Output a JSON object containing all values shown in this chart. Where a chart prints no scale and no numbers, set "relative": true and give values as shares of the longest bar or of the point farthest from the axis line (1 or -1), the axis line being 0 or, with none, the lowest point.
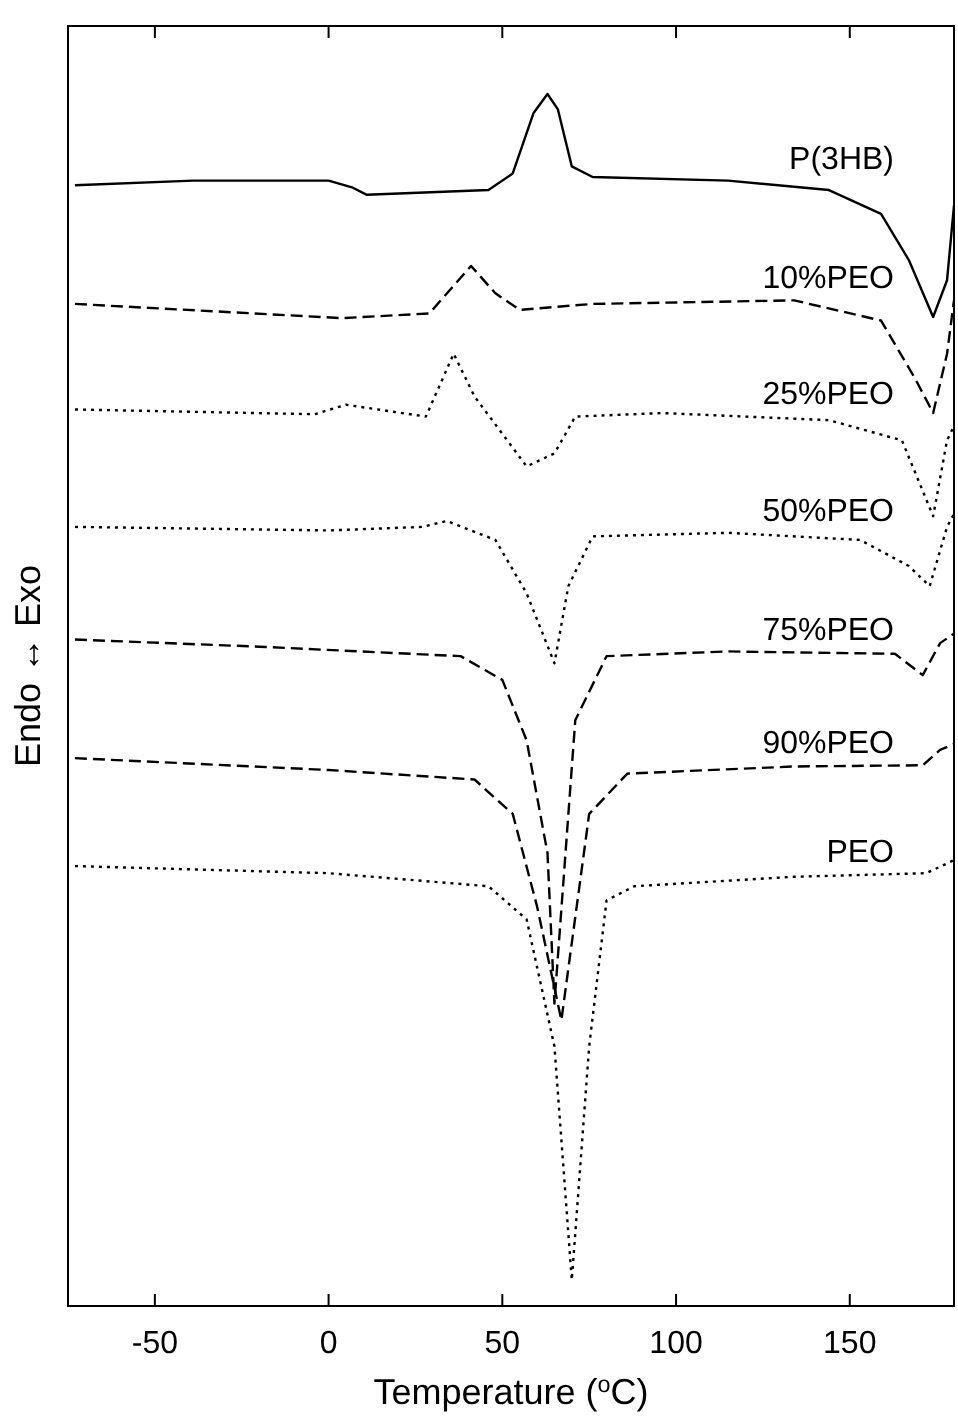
{
  "chart_data": {
    "type": "line",
    "relative": true,
    "xlabel": "Temperature ($^{o}$C)",
    "ylabel": "Endo ↔ Exo",
    "xlim": [
      -75,
      180
    ],
    "xticks": [
      -50,
      0,
      50,
      100,
      150
    ],
    "marker": "none",
    "series": [
      {
        "name": "P(3HB)",
        "color": "#000000",
        "line_style": "solid",
        "x": [
          -73,
          -39,
          0,
          7,
          11,
          46,
          53,
          59,
          63,
          66,
          70,
          76,
          115,
          144,
          159,
          167,
          174,
          178,
          180
        ],
        "values": [
          0.923,
          0.927,
          0.927,
          0.921,
          0.915,
          0.919,
          0.933,
          0.984,
          1.0,
          0.987,
          0.939,
          0.93,
          0.927,
          0.919,
          0.899,
          0.86,
          0.812,
          0.843,
          0.906
        ]
      },
      {
        "name": "10%PEO",
        "color": "#000000",
        "line_style": "dashed",
        "x": [
          -73,
          4,
          29,
          41,
          48,
          55,
          76,
          134,
          159,
          169,
          174,
          178,
          180
        ],
        "values": [
          0.823,
          0.811,
          0.815,
          0.855,
          0.832,
          0.818,
          0.823,
          0.826,
          0.809,
          0.759,
          0.731,
          0.781,
          0.826
        ]
      },
      {
        "name": "25%PEO",
        "color": "#000000",
        "line_style": "dotted",
        "x": [
          -73,
          -4,
          5,
          28,
          36,
          42,
          57,
          65,
          71,
          96,
          144,
          165,
          174,
          178,
          180
        ],
        "values": [
          0.734,
          0.73,
          0.738,
          0.728,
          0.781,
          0.745,
          0.686,
          0.697,
          0.728,
          0.731,
          0.725,
          0.708,
          0.644,
          0.708,
          0.72
        ]
      },
      {
        "name": "50%PEO",
        "color": "#000000",
        "line_style": "dotted",
        "x": [
          -73,
          0,
          27,
          34,
          48,
          57,
          65,
          69,
          76,
          115,
          153,
          167,
          173,
          178,
          180
        ],
        "values": [
          0.635,
          0.632,
          0.635,
          0.64,
          0.624,
          0.579,
          0.52,
          0.585,
          0.627,
          0.63,
          0.624,
          0.602,
          0.585,
          0.635,
          0.646
        ]
      },
      {
        "name": "75%PEO",
        "color": "#000000",
        "line_style": "dashed",
        "x": [
          -73,
          -20,
          38,
          50,
          57,
          63,
          65,
          71,
          80,
          115,
          163,
          171,
          176,
          180
        ],
        "values": [
          0.54,
          0.534,
          0.526,
          0.506,
          0.455,
          0.36,
          0.233,
          0.472,
          0.526,
          0.53,
          0.528,
          0.51,
          0.537,
          0.545
        ]
      },
      {
        "name": "90%PEO",
        "color": "#000000",
        "line_style": "dashed",
        "x": [
          -73,
          0,
          42,
          53,
          60,
          67,
          75,
          86,
          134,
          171,
          176,
          180
        ],
        "values": [
          0.44,
          0.43,
          0.422,
          0.393,
          0.315,
          0.219,
          0.393,
          0.427,
          0.433,
          0.434,
          0.447,
          0.452
        ]
      },
      {
        "name": "PEO",
        "color": "#000000",
        "line_style": "dotted",
        "x": [
          -73,
          0,
          46,
          57,
          65,
          70,
          75,
          80,
          88,
          134,
          172,
          180
        ],
        "values": [
          0.349,
          0.343,
          0.332,
          0.304,
          0.197,
          0,
          0.197,
          0.32,
          0.332,
          0.34,
          0.343,
          0.354
        ]
      }
    ]
  }
}
